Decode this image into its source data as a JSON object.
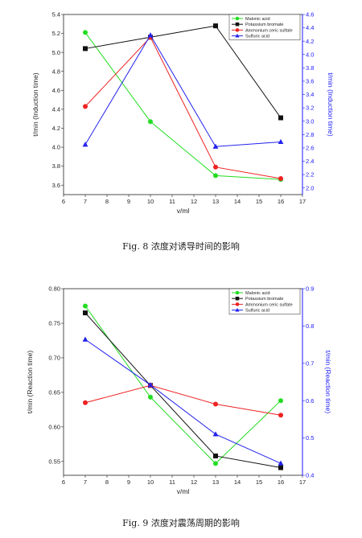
{
  "chart_data": [
    {
      "type": "line",
      "caption": "Fig. 8 浓度对诱导时间的影响",
      "xlabel": "v/ml",
      "ylabel": "t/min (Induction time)",
      "ylabel_right": "t/min (Induction time)",
      "xlim": [
        6,
        17
      ],
      "ylim": [
        3.5,
        5.4
      ],
      "ylim_right": [
        1.9,
        4.6
      ],
      "xticks": [
        6,
        7,
        8,
        9,
        10,
        11,
        12,
        13,
        14,
        15,
        16,
        17
      ],
      "yticks": [
        3.6,
        3.8,
        4.0,
        4.2,
        4.4,
        4.6,
        4.8,
        5.0,
        5.2,
        5.4
      ],
      "yticks_right": [
        2.0,
        2.2,
        2.4,
        2.6,
        2.8,
        3.0,
        3.2,
        3.4,
        3.6,
        3.8,
        4.0,
        4.2,
        4.4,
        4.6
      ],
      "x": [
        7,
        10,
        13,
        16
      ],
      "legend_position": "top-right",
      "series": [
        {
          "name": "Malonic acid",
          "axis": "left",
          "color": "#22dd22",
          "marker": "circle",
          "values": [
            5.21,
            4.27,
            3.7,
            3.66
          ]
        },
        {
          "name": "Potassium bromate",
          "axis": "left",
          "color": "#111111",
          "marker": "square",
          "values": [
            5.04,
            5.16,
            5.28,
            4.31
          ]
        },
        {
          "name": "Ammonium ceric sulfate",
          "axis": "left",
          "color": "#ee2222",
          "marker": "circle",
          "values": [
            4.43,
            5.16,
            3.79,
            3.67
          ]
        },
        {
          "name": "Sulfuric acid",
          "axis": "right",
          "color": "#2222ee",
          "marker": "triangle",
          "values": [
            2.65,
            4.29,
            2.62,
            2.69
          ]
        }
      ]
    },
    {
      "type": "line",
      "caption": "Fig. 9 浓度对震荡周期的影响",
      "xlabel": "v/ml",
      "ylabel": "t/min (Reaction time)",
      "ylabel_right": "t/min (Reaction time)",
      "xlim": [
        6,
        17
      ],
      "ylim": [
        0.53,
        0.8
      ],
      "ylim_right": [
        0.4,
        0.9
      ],
      "xticks": [
        6,
        7,
        8,
        9,
        10,
        11,
        12,
        13,
        14,
        15,
        16,
        17
      ],
      "yticks": [
        0.55,
        0.6,
        0.65,
        0.7,
        0.75,
        0.8
      ],
      "yticks_right": [
        0.4,
        0.5,
        0.6,
        0.7,
        0.8,
        0.9
      ],
      "x": [
        7,
        10,
        13,
        16
      ],
      "legend_position": "top-right",
      "series": [
        {
          "name": "Malonic acid",
          "axis": "left",
          "color": "#22dd22",
          "marker": "circle",
          "values": [
            0.775,
            0.643,
            0.547,
            0.638
          ]
        },
        {
          "name": "Potassium bromate",
          "axis": "left",
          "color": "#111111",
          "marker": "square",
          "values": [
            0.765,
            0.66,
            0.558,
            0.541
          ]
        },
        {
          "name": "Ammonium ceric sulfate",
          "axis": "left",
          "color": "#ee2222",
          "marker": "circle",
          "values": [
            0.635,
            0.66,
            0.633,
            0.617
          ]
        },
        {
          "name": "Sulfuric acid",
          "axis": "right",
          "color": "#2222ee",
          "marker": "triangle",
          "values": [
            0.764,
            0.642,
            0.51,
            0.432
          ]
        }
      ]
    }
  ]
}
